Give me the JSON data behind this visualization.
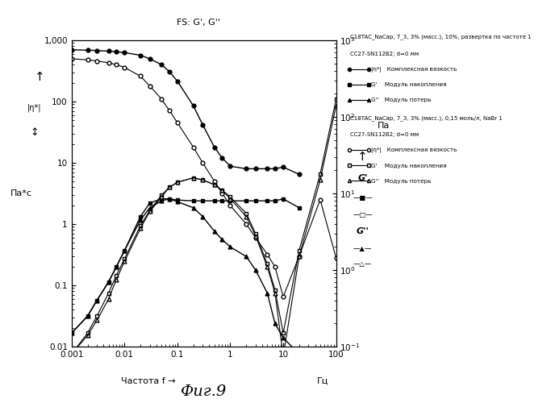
{
  "title": "FS: G', G''",
  "xlabel": "Частота f",
  "xlabel_arrow": "→",
  "xunit": "Гц",
  "ylabel_left": "Па*с",
  "ylabel_right": "Па",
  "fig_label": "Фиг.9",
  "xlim": [
    0.001,
    100
  ],
  "ylim_left": [
    0.01,
    1000
  ],
  "ylim_right": [
    0.1,
    1000
  ],
  "s1_eta_x": [
    0.001,
    0.002,
    0.003,
    0.005,
    0.007,
    0.01,
    0.02,
    0.03,
    0.05,
    0.07,
    0.1,
    0.2,
    0.3,
    0.5,
    0.7,
    1.0,
    2.0,
    3.0,
    5.0,
    7.0,
    10.0,
    20.0
  ],
  "s1_eta_y": [
    700,
    690,
    680,
    665,
    650,
    630,
    570,
    500,
    400,
    310,
    215,
    85,
    42,
    18,
    12,
    8.8,
    8.0,
    8.0,
    8.0,
    8.0,
    8.5,
    6.5
  ],
  "s1_Gp_x": [
    0.001,
    0.002,
    0.003,
    0.005,
    0.007,
    0.01,
    0.02,
    0.03,
    0.05,
    0.07,
    0.1,
    0.2,
    0.3,
    0.5,
    0.7,
    1.0,
    2.0,
    3.0,
    5.0,
    7.0,
    10.0,
    20.0
  ],
  "s1_Gp_y": [
    0.15,
    0.25,
    0.4,
    0.7,
    1.1,
    1.8,
    5.0,
    7.5,
    8.5,
    8.5,
    8.2,
    8.0,
    8.0,
    8.0,
    8.0,
    8.0,
    8.0,
    8.0,
    8.0,
    8.0,
    8.5,
    6.5
  ],
  "s1_Gpp_x": [
    0.001,
    0.002,
    0.003,
    0.005,
    0.007,
    0.01,
    0.02,
    0.03,
    0.05,
    0.07,
    0.1,
    0.2,
    0.3,
    0.5,
    0.7,
    1.0,
    2.0,
    3.0,
    5.0,
    7.0,
    10.0,
    20.0
  ],
  "s1_Gpp_y": [
    0.15,
    0.25,
    0.4,
    0.7,
    1.1,
    1.8,
    4.5,
    6.5,
    8.0,
    8.5,
    7.8,
    6.5,
    5.0,
    3.2,
    2.5,
    2.0,
    1.5,
    1.0,
    0.5,
    0.2,
    0.13,
    0.08
  ],
  "s2_eta_x": [
    0.001,
    0.002,
    0.003,
    0.005,
    0.007,
    0.01,
    0.02,
    0.03,
    0.05,
    0.07,
    0.1,
    0.2,
    0.3,
    0.5,
    0.7,
    1.0,
    2.0,
    3.0,
    5.0,
    7.0,
    10.0,
    20.0,
    50.0,
    100.0
  ],
  "s2_eta_y": [
    500,
    480,
    460,
    430,
    400,
    360,
    260,
    180,
    110,
    72,
    45,
    18,
    10,
    5.0,
    3.2,
    2.0,
    1.0,
    0.6,
    0.32,
    0.2,
    0.065,
    0.3,
    2.5,
    0.28
  ],
  "s2_Gp_x": [
    0.001,
    0.002,
    0.003,
    0.005,
    0.007,
    0.01,
    0.02,
    0.03,
    0.05,
    0.07,
    0.1,
    0.2,
    0.3,
    0.5,
    0.7,
    1.0,
    2.0,
    3.0,
    5.0,
    7.0,
    10.0,
    20.0,
    50.0,
    100.0
  ],
  "s2_Gp_y": [
    0.08,
    0.15,
    0.25,
    0.5,
    0.85,
    1.4,
    3.8,
    6.0,
    9.5,
    12,
    14,
    16,
    15,
    13,
    11,
    9.0,
    5.5,
    3.0,
    1.2,
    0.55,
    0.15,
    1.8,
    18,
    170
  ],
  "s2_Gpp_x": [
    0.001,
    0.002,
    0.003,
    0.005,
    0.007,
    0.01,
    0.02,
    0.03,
    0.05,
    0.07,
    0.1,
    0.2,
    0.3,
    0.5,
    0.7,
    1.0,
    2.0,
    3.0,
    5.0,
    7.0,
    10.0,
    20.0,
    50.0,
    100.0
  ],
  "s2_Gpp_y": [
    0.08,
    0.14,
    0.22,
    0.42,
    0.75,
    1.3,
    3.5,
    5.8,
    9.0,
    12,
    14,
    16,
    15,
    13,
    11,
    8.5,
    5.0,
    2.8,
    1.1,
    0.5,
    0.075,
    1.5,
    15,
    140
  ],
  "legend1_header": "C18TAC_NaCap, 7_3, 3% (масс.), 10%, развертка по частоте 1",
  "legend1_sub": "CC27-SN112B2; d=0 мм",
  "legend1_eta_label": "|η*|   Комплексная вязкость",
  "legend1_Gp_label": "G'    Модуль накопления",
  "legend1_Gpp_label": "G''   Модуль потерь",
  "legend2_header": "C18TAC_NaCap, 7_3, 3% (масс.), 0,15 моль/л, NaBr 1",
  "legend2_sub": "CC27-SN112B2; d=0 мм",
  "legend2_eta_label": "|η*|   Комплексная вязкость",
  "legend2_Gp_label": "G'    Модуль накопления",
  "legend2_Gpp_label": "G''   Модуль потерь",
  "bg_color": "#ffffff"
}
